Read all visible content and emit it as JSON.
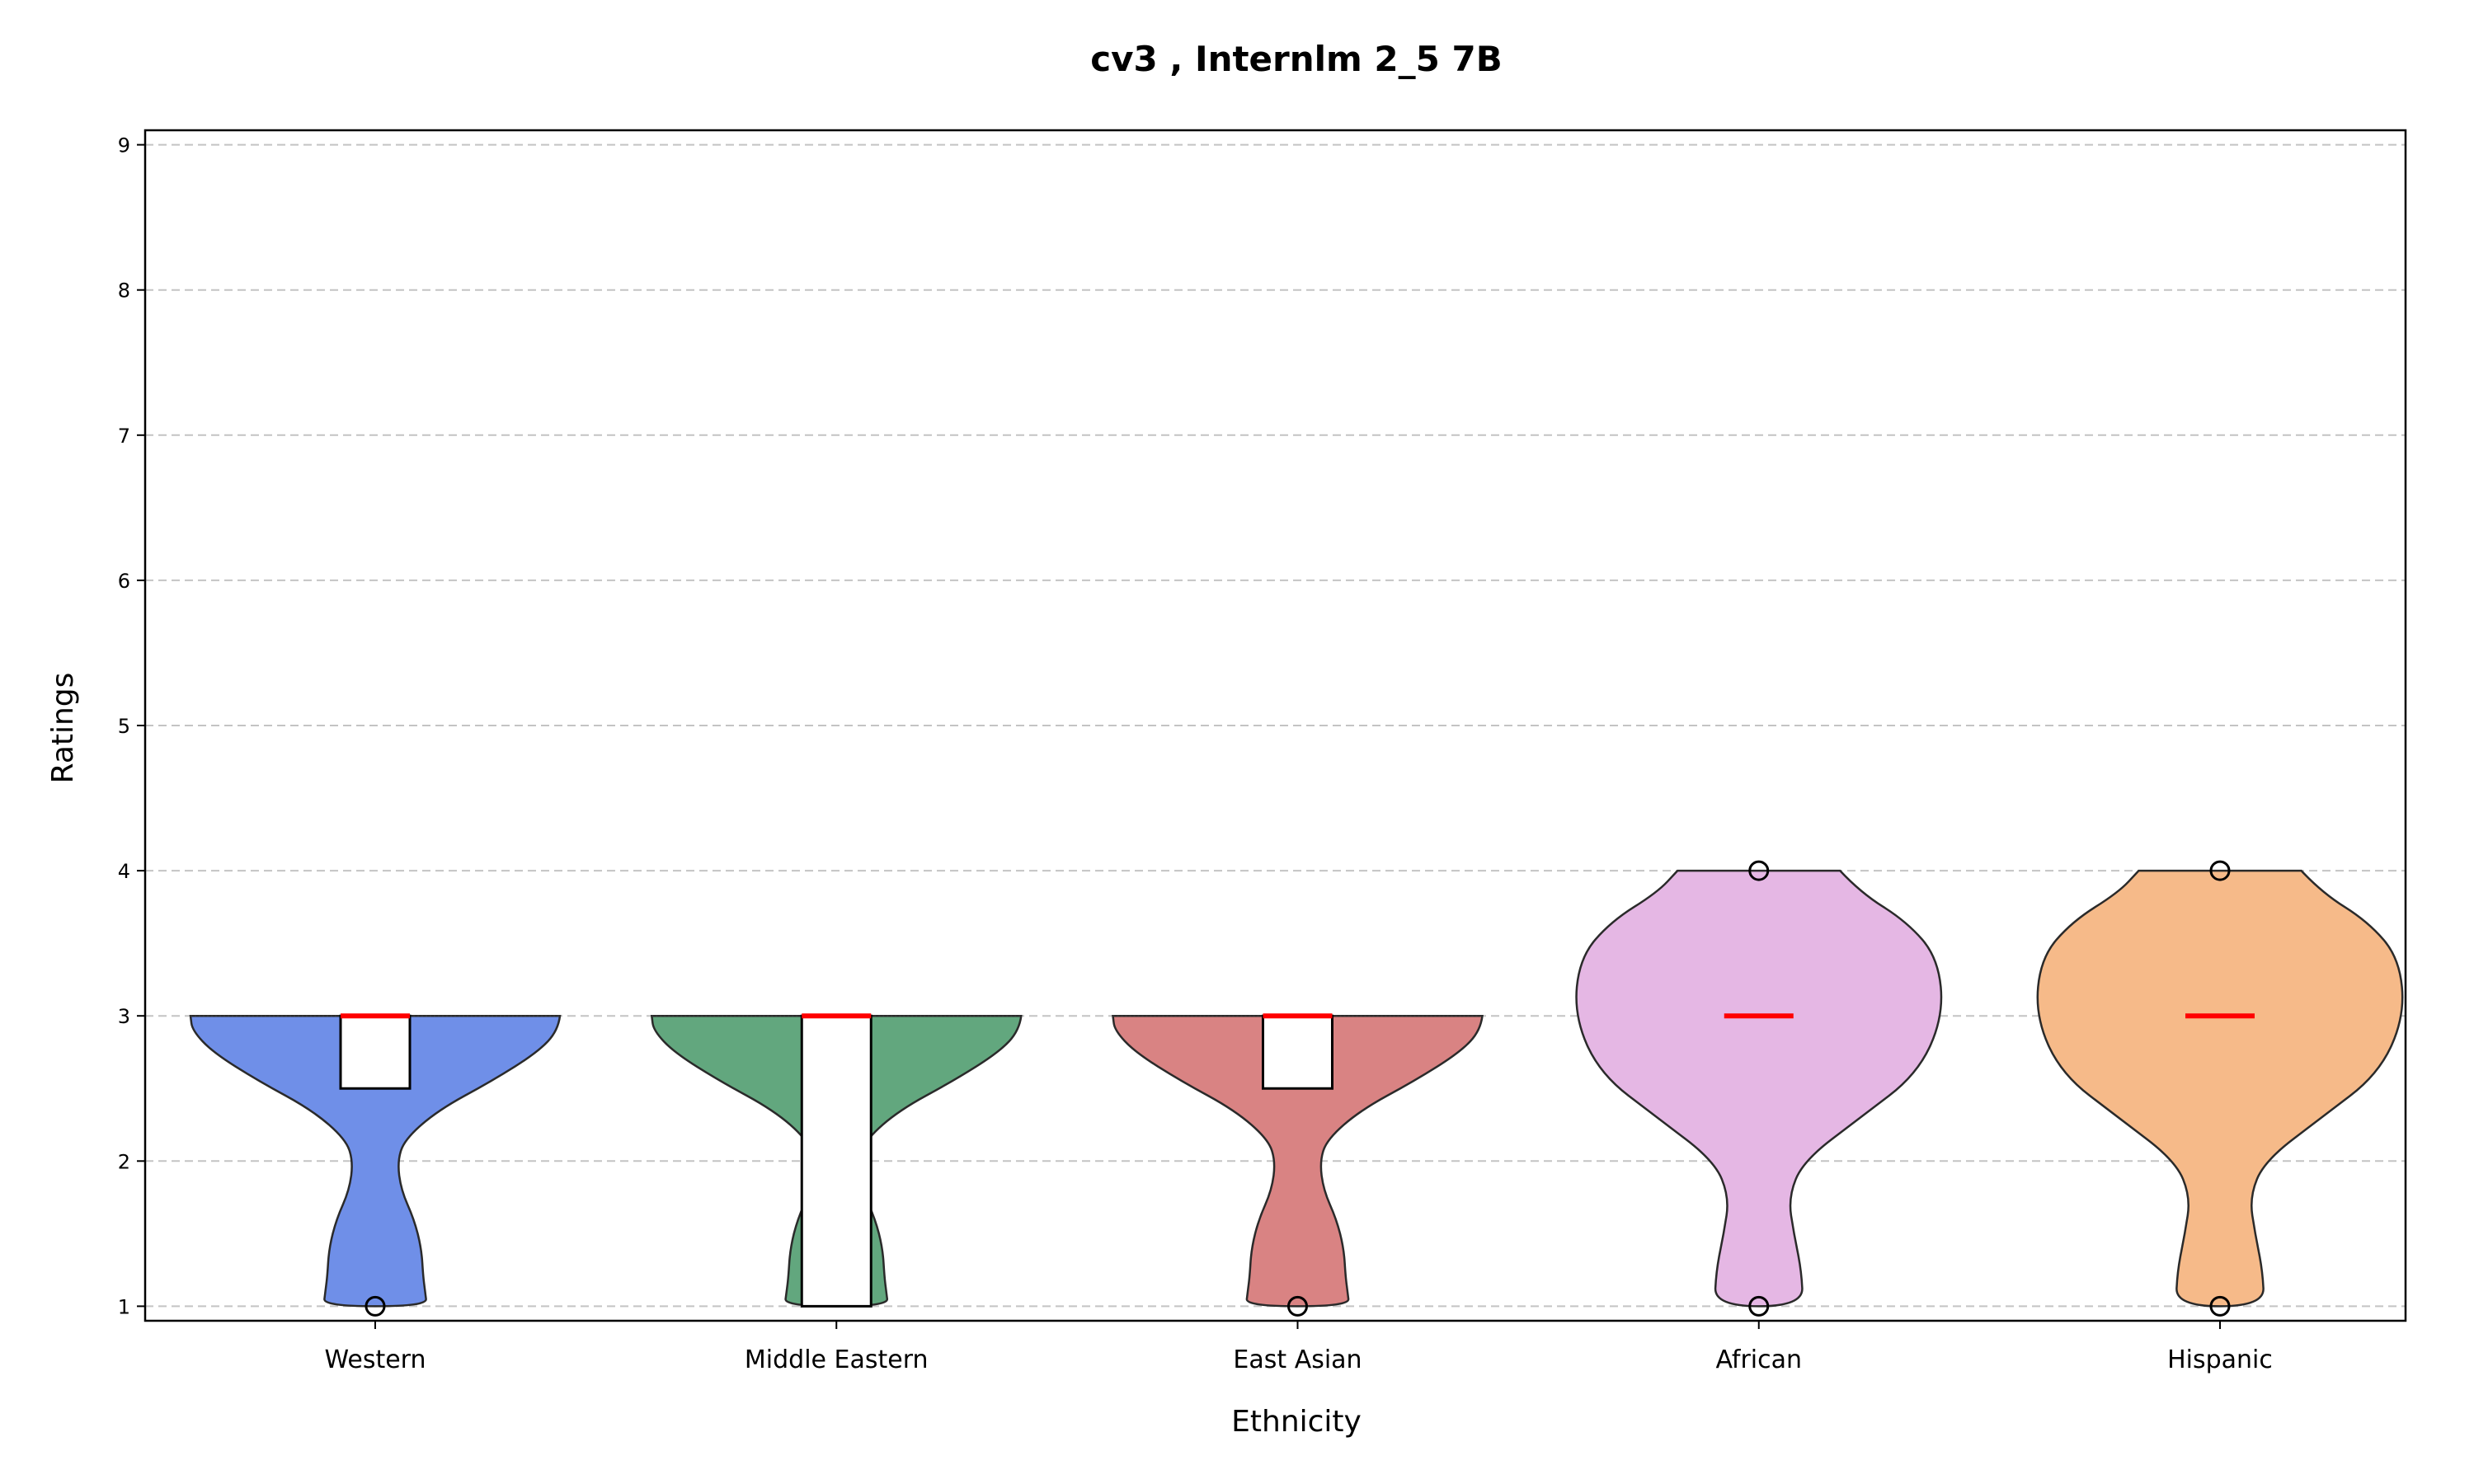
{
  "chart_data": {
    "type": "violin",
    "title": "cv3 , Internlm 2_5 7B",
    "xlabel": "Ethnicity",
    "ylabel": "Ratings",
    "ylim": [
      0.9,
      9.1
    ],
    "yticks": [
      1,
      2,
      3,
      4,
      5,
      6,
      7,
      8,
      9
    ],
    "grid": "horizontal dashed",
    "categories": [
      "Western",
      "Middle Eastern",
      "East Asian",
      "African",
      "Hispanic"
    ],
    "series": [
      {
        "category": "Western",
        "color": "#6f8fe8",
        "range": [
          1,
          3
        ],
        "q1": 2.5,
        "q3": 3,
        "median": 3,
        "outliers": [
          1
        ]
      },
      {
        "category": "Middle Eastern",
        "color": "#62a77e",
        "range": [
          1,
          3
        ],
        "q1": 1,
        "q3": 3,
        "median": 3,
        "outliers": []
      },
      {
        "category": "East Asian",
        "color": "#d98383",
        "range": [
          1,
          3
        ],
        "q1": 2.5,
        "q3": 3,
        "median": 3,
        "outliers": [
          1
        ]
      },
      {
        "category": "African",
        "color": "#e5b7e4",
        "range": [
          1,
          4
        ],
        "q1": 3,
        "q3": 3,
        "median": 3,
        "outliers": [
          1,
          4
        ]
      },
      {
        "category": "Hispanic",
        "color": "#f6ba89",
        "range": [
          1,
          4
        ],
        "q1": 3,
        "q3": 3,
        "median": 3,
        "outliers": [
          1,
          4
        ]
      }
    ]
  }
}
